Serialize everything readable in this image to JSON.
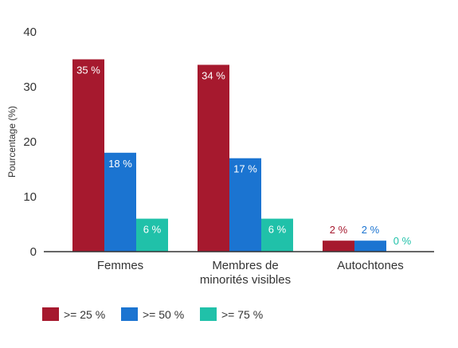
{
  "chart_data": {
    "type": "bar",
    "title": "",
    "xlabel": "",
    "ylabel": "Pourcentage (%)",
    "ylim": [
      0,
      40
    ],
    "yticks": [
      0,
      10,
      20,
      30,
      40
    ],
    "grid": false,
    "legend_position": "bottom-left",
    "categories": [
      [
        "Femmes"
      ],
      [
        "Membres de",
        "minorités visibles"
      ],
      [
        "Autochtones"
      ]
    ],
    "series": [
      {
        "name": ">= 25 %",
        "color": "#A6192E",
        "label_color": "#A6192E",
        "values": [
          35,
          34,
          2
        ],
        "labels": [
          "35 %",
          "34 %",
          "2 %"
        ]
      },
      {
        "name": ">= 50 %",
        "color": "#1B74D1",
        "label_color": "#1B74D1",
        "values": [
          18,
          17,
          2
        ],
        "labels": [
          "18 %",
          "17 %",
          "2 %"
        ]
      },
      {
        "name": ">= 75 %",
        "color": "#20C1A9",
        "label_color": "#20C1A9",
        "values": [
          6,
          6,
          0
        ],
        "labels": [
          "6 %",
          "6 %",
          "0 %"
        ]
      }
    ],
    "axis_color": "#333333",
    "text_color": "#333333"
  }
}
